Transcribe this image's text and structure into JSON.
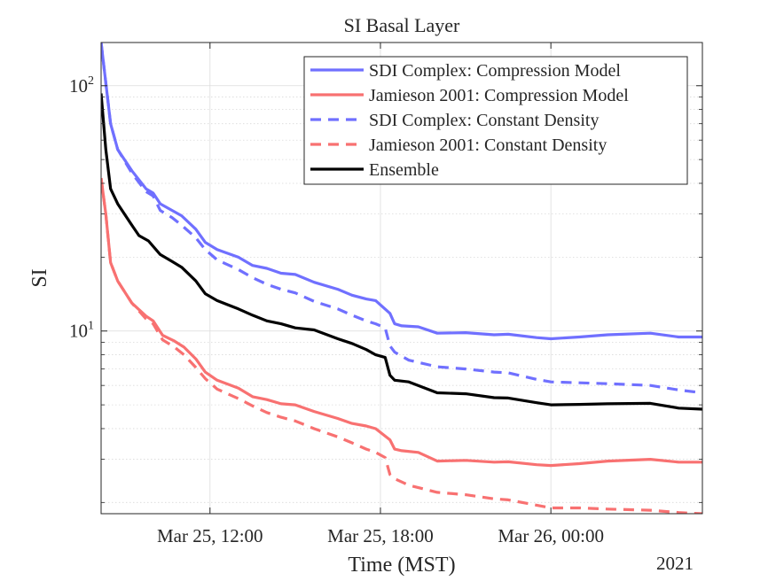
{
  "chart_data": {
    "type": "line",
    "title": "SI Basal Layer",
    "xlabel": "Time (MST)",
    "ylabel": "SI",
    "year_label": "2021",
    "yscale": "log",
    "ylim": [
      1.8,
      150
    ],
    "xlim": [
      "2021-03-25 08:10",
      "2021-03-26 05:20"
    ],
    "x_ticks": [
      {
        "time": "2021-03-25 12:00",
        "label": "Mar 25, 12:00"
      },
      {
        "time": "2021-03-25 18:00",
        "label": "Mar 25, 18:00"
      },
      {
        "time": "2021-03-26 00:00",
        "label": "Mar 26, 00:00"
      }
    ],
    "y_ticks": [
      {
        "value": 10,
        "base": "10",
        "exp": "1"
      },
      {
        "value": 100,
        "base": "10",
        "exp": "2"
      }
    ],
    "grid": true,
    "legend_position": "top-right",
    "series": [
      {
        "name": "SDI Complex: Compression Model",
        "color": "#7070ff",
        "dash": "solid",
        "points": [
          [
            "2021-03-25 08:10",
            150
          ],
          [
            "2021-03-25 08:30",
            70
          ],
          [
            "2021-03-25 08:45",
            55
          ],
          [
            "2021-03-25 09:15",
            45
          ],
          [
            "2021-03-25 09:45",
            38
          ],
          [
            "2021-03-25 10:00",
            36.5
          ],
          [
            "2021-03-25 10:15",
            33
          ],
          [
            "2021-03-25 10:40",
            31
          ],
          [
            "2021-03-25 11:00",
            29.5
          ],
          [
            "2021-03-25 11:30",
            26
          ],
          [
            "2021-03-25 11:50",
            23
          ],
          [
            "2021-03-25 12:15",
            21.5
          ],
          [
            "2021-03-25 13:00",
            20
          ],
          [
            "2021-03-25 13:30",
            18.5
          ],
          [
            "2021-03-25 14:00",
            18
          ],
          [
            "2021-03-25 14:30",
            17.2
          ],
          [
            "2021-03-25 15:00",
            17
          ],
          [
            "2021-03-25 15:40",
            15.8
          ],
          [
            "2021-03-25 16:30",
            14.8
          ],
          [
            "2021-03-25 17:00",
            14
          ],
          [
            "2021-03-25 17:30",
            13.5
          ],
          [
            "2021-03-25 17:50",
            13.3
          ],
          [
            "2021-03-25 18:20",
            11.8
          ],
          [
            "2021-03-25 18:30",
            10.7
          ],
          [
            "2021-03-25 18:45",
            10.5
          ],
          [
            "2021-03-25 19:20",
            10.4
          ],
          [
            "2021-03-25 20:00",
            9.8
          ],
          [
            "2021-03-25 21:00",
            9.85
          ],
          [
            "2021-03-25 22:00",
            9.65
          ],
          [
            "2021-03-25 22:30",
            9.7
          ],
          [
            "2021-03-25 23:30",
            9.4
          ],
          [
            "2021-03-26 00:00",
            9.3
          ],
          [
            "2021-03-26 01:00",
            9.45
          ],
          [
            "2021-03-26 02:00",
            9.65
          ],
          [
            "2021-03-26 03:30",
            9.8
          ],
          [
            "2021-03-26 04:30",
            9.45
          ],
          [
            "2021-03-26 05:20",
            9.45
          ]
        ]
      },
      {
        "name": "Jamieson 2001: Compression Model",
        "color": "#f87171",
        "dash": "solid",
        "points": [
          [
            "2021-03-25 08:10",
            42
          ],
          [
            "2021-03-25 08:20",
            30
          ],
          [
            "2021-03-25 08:30",
            19
          ],
          [
            "2021-03-25 08:45",
            16
          ],
          [
            "2021-03-25 09:15",
            13
          ],
          [
            "2021-03-25 09:45",
            11.5
          ],
          [
            "2021-03-25 10:00",
            11
          ],
          [
            "2021-03-25 10:20",
            9.6
          ],
          [
            "2021-03-25 10:45",
            9.1
          ],
          [
            "2021-03-25 11:05",
            8.6
          ],
          [
            "2021-03-25 11:30",
            7.7
          ],
          [
            "2021-03-25 11:50",
            6.8
          ],
          [
            "2021-03-25 12:15",
            6.3
          ],
          [
            "2021-03-25 13:00",
            5.85
          ],
          [
            "2021-03-25 13:30",
            5.4
          ],
          [
            "2021-03-25 14:00",
            5.25
          ],
          [
            "2021-03-25 14:30",
            5.05
          ],
          [
            "2021-03-25 15:00",
            5.0
          ],
          [
            "2021-03-25 15:40",
            4.7
          ],
          [
            "2021-03-25 16:30",
            4.4
          ],
          [
            "2021-03-25 17:00",
            4.2
          ],
          [
            "2021-03-25 17:30",
            4.1
          ],
          [
            "2021-03-25 17:50",
            4.0
          ],
          [
            "2021-03-25 18:20",
            3.6
          ],
          [
            "2021-03-25 18:30",
            3.3
          ],
          [
            "2021-03-25 18:45",
            3.25
          ],
          [
            "2021-03-25 19:20",
            3.2
          ],
          [
            "2021-03-25 20:00",
            2.95
          ],
          [
            "2021-03-25 21:00",
            2.97
          ],
          [
            "2021-03-25 22:00",
            2.92
          ],
          [
            "2021-03-25 22:30",
            2.93
          ],
          [
            "2021-03-25 23:30",
            2.85
          ],
          [
            "2021-03-26 00:00",
            2.83
          ],
          [
            "2021-03-26 01:00",
            2.88
          ],
          [
            "2021-03-26 02:00",
            2.95
          ],
          [
            "2021-03-26 03:30",
            3.0
          ],
          [
            "2021-03-26 04:30",
            2.92
          ],
          [
            "2021-03-26 05:20",
            2.92
          ]
        ]
      },
      {
        "name": "SDI Complex: Constant Density",
        "color": "#7070ff",
        "dash": "dashed",
        "points": [
          [
            "2021-03-25 08:10",
            150
          ],
          [
            "2021-03-25 08:30",
            70
          ],
          [
            "2021-03-25 08:45",
            55
          ],
          [
            "2021-03-25 09:15",
            44
          ],
          [
            "2021-03-25 09:45",
            37
          ],
          [
            "2021-03-25 10:00",
            35.5
          ],
          [
            "2021-03-25 10:15",
            31
          ],
          [
            "2021-03-25 10:40",
            29
          ],
          [
            "2021-03-25 11:00",
            27
          ],
          [
            "2021-03-25 11:30",
            24
          ],
          [
            "2021-03-25 11:50",
            21.5
          ],
          [
            "2021-03-25 12:15",
            19.5
          ],
          [
            "2021-03-25 13:00",
            17.8
          ],
          [
            "2021-03-25 13:30",
            16.5
          ],
          [
            "2021-03-25 14:00",
            15.5
          ],
          [
            "2021-03-25 14:30",
            14.8
          ],
          [
            "2021-03-25 15:00",
            14.3
          ],
          [
            "2021-03-25 15:40",
            13.2
          ],
          [
            "2021-03-25 16:30",
            12.3
          ],
          [
            "2021-03-25 17:00",
            11.6
          ],
          [
            "2021-03-25 17:30",
            11.0
          ],
          [
            "2021-03-25 17:50",
            10.7
          ],
          [
            "2021-03-25 18:10",
            10.3
          ],
          [
            "2021-03-25 18:20",
            8.7
          ],
          [
            "2021-03-25 18:30",
            8.2
          ],
          [
            "2021-03-25 19:00",
            7.6
          ],
          [
            "2021-03-25 20:00",
            7.15
          ],
          [
            "2021-03-25 21:00",
            7.0
          ],
          [
            "2021-03-25 22:00",
            6.8
          ],
          [
            "2021-03-25 22:30",
            6.75
          ],
          [
            "2021-03-25 23:30",
            6.35
          ],
          [
            "2021-03-26 00:00",
            6.2
          ],
          [
            "2021-03-26 01:00",
            6.15
          ],
          [
            "2021-03-26 02:00",
            6.1
          ],
          [
            "2021-03-26 03:30",
            6.0
          ],
          [
            "2021-03-26 04:30",
            5.75
          ],
          [
            "2021-03-26 05:20",
            5.6
          ]
        ]
      },
      {
        "name": "Jamieson 2001: Constant Density",
        "color": "#f87171",
        "dash": "dashed",
        "points": [
          [
            "2021-03-25 08:10",
            42
          ],
          [
            "2021-03-25 08:20",
            30
          ],
          [
            "2021-03-25 08:30",
            19
          ],
          [
            "2021-03-25 08:45",
            16
          ],
          [
            "2021-03-25 09:15",
            13
          ],
          [
            "2021-03-25 09:45",
            11.2
          ],
          [
            "2021-03-25 10:00",
            10.7
          ],
          [
            "2021-03-25 10:20",
            9.2
          ],
          [
            "2021-03-25 10:45",
            8.6
          ],
          [
            "2021-03-25 11:05",
            8.0
          ],
          [
            "2021-03-25 11:30",
            7.1
          ],
          [
            "2021-03-25 11:50",
            6.4
          ],
          [
            "2021-03-25 12:15",
            5.8
          ],
          [
            "2021-03-25 13:00",
            5.3
          ],
          [
            "2021-03-25 13:30",
            4.95
          ],
          [
            "2021-03-25 14:00",
            4.65
          ],
          [
            "2021-03-25 14:30",
            4.45
          ],
          [
            "2021-03-25 15:00",
            4.3
          ],
          [
            "2021-03-25 15:40",
            4.0
          ],
          [
            "2021-03-25 16:30",
            3.7
          ],
          [
            "2021-03-25 17:00",
            3.5
          ],
          [
            "2021-03-25 17:30",
            3.3
          ],
          [
            "2021-03-25 17:50",
            3.2
          ],
          [
            "2021-03-25 18:10",
            3.05
          ],
          [
            "2021-03-25 18:20",
            2.6
          ],
          [
            "2021-03-25 18:30",
            2.5
          ],
          [
            "2021-03-25 19:00",
            2.35
          ],
          [
            "2021-03-25 20:00",
            2.2
          ],
          [
            "2021-03-25 21:00",
            2.15
          ],
          [
            "2021-03-25 22:00",
            2.07
          ],
          [
            "2021-03-25 22:30",
            2.05
          ],
          [
            "2021-03-25 23:30",
            1.95
          ],
          [
            "2021-03-26 00:00",
            1.9
          ],
          [
            "2021-03-26 01:00",
            1.9
          ],
          [
            "2021-03-26 02:00",
            1.88
          ],
          [
            "2021-03-26 03:30",
            1.86
          ],
          [
            "2021-03-26 04:30",
            1.82
          ],
          [
            "2021-03-26 05:20",
            1.8
          ]
        ]
      },
      {
        "name": "Ensemble",
        "color": "#000000",
        "dash": "solid",
        "points": [
          [
            "2021-03-25 08:10",
            93
          ],
          [
            "2021-03-25 08:20",
            55
          ],
          [
            "2021-03-25 08:30",
            38
          ],
          [
            "2021-03-25 08:45",
            33
          ],
          [
            "2021-03-25 09:15",
            27
          ],
          [
            "2021-03-25 09:30",
            24.5
          ],
          [
            "2021-03-25 09:50",
            23.3
          ],
          [
            "2021-03-25 10:15",
            20.5
          ],
          [
            "2021-03-25 10:40",
            19.2
          ],
          [
            "2021-03-25 11:00",
            18.2
          ],
          [
            "2021-03-25 11:30",
            16
          ],
          [
            "2021-03-25 11:50",
            14.2
          ],
          [
            "2021-03-25 12:15",
            13.3
          ],
          [
            "2021-03-25 13:00",
            12.3
          ],
          [
            "2021-03-25 13:30",
            11.6
          ],
          [
            "2021-03-25 14:00",
            11.0
          ],
          [
            "2021-03-25 14:30",
            10.7
          ],
          [
            "2021-03-25 15:00",
            10.3
          ],
          [
            "2021-03-25 15:40",
            10.1
          ],
          [
            "2021-03-25 16:30",
            9.3
          ],
          [
            "2021-03-25 17:00",
            8.9
          ],
          [
            "2021-03-25 17:30",
            8.4
          ],
          [
            "2021-03-25 17:50",
            8.0
          ],
          [
            "2021-03-25 18:10",
            7.8
          ],
          [
            "2021-03-25 18:20",
            6.6
          ],
          [
            "2021-03-25 18:30",
            6.3
          ],
          [
            "2021-03-25 19:00",
            6.2
          ],
          [
            "2021-03-25 20:00",
            5.6
          ],
          [
            "2021-03-25 21:00",
            5.55
          ],
          [
            "2021-03-25 22:00",
            5.35
          ],
          [
            "2021-03-25 22:30",
            5.33
          ],
          [
            "2021-03-25 23:30",
            5.1
          ],
          [
            "2021-03-26 00:00",
            5.0
          ],
          [
            "2021-03-26 01:00",
            5.02
          ],
          [
            "2021-03-26 02:00",
            5.05
          ],
          [
            "2021-03-26 03:30",
            5.07
          ],
          [
            "2021-03-26 04:30",
            4.85
          ],
          [
            "2021-03-26 05:20",
            4.8
          ]
        ]
      }
    ]
  }
}
